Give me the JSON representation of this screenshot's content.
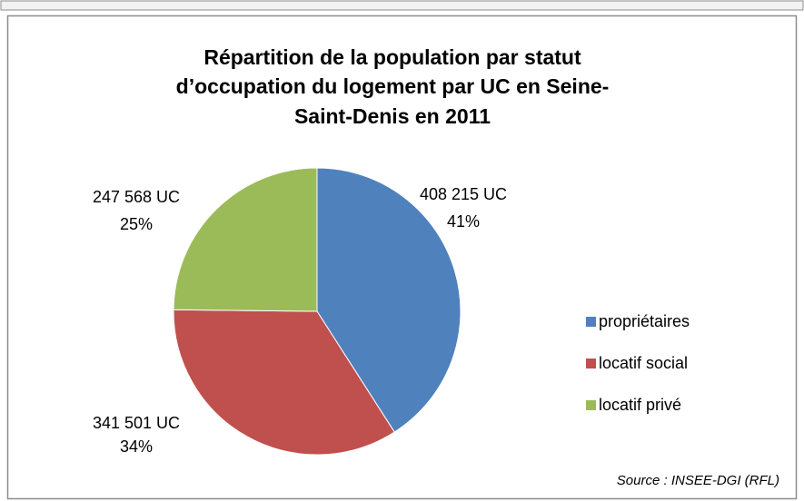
{
  "chart_data": {
    "type": "pie",
    "title": [
      "Répartition de la population par statut",
      "d’occupation du logement par UC en Seine-",
      "Saint-Denis en 2011"
    ],
    "categories": [
      "propriétaires",
      "locatif social",
      "locatif privé"
    ],
    "values": [
      408215,
      341501,
      247568
    ],
    "value_labels": [
      "408 215 UC",
      "341 501 UC",
      "247 568 UC"
    ],
    "percent_labels": [
      "41%",
      "34%",
      "25%"
    ],
    "colors": [
      "#4f81bd",
      "#c0504d",
      "#9bbb59"
    ],
    "legend": "right",
    "source": "Source : INSEE-DGI (RFL)"
  }
}
